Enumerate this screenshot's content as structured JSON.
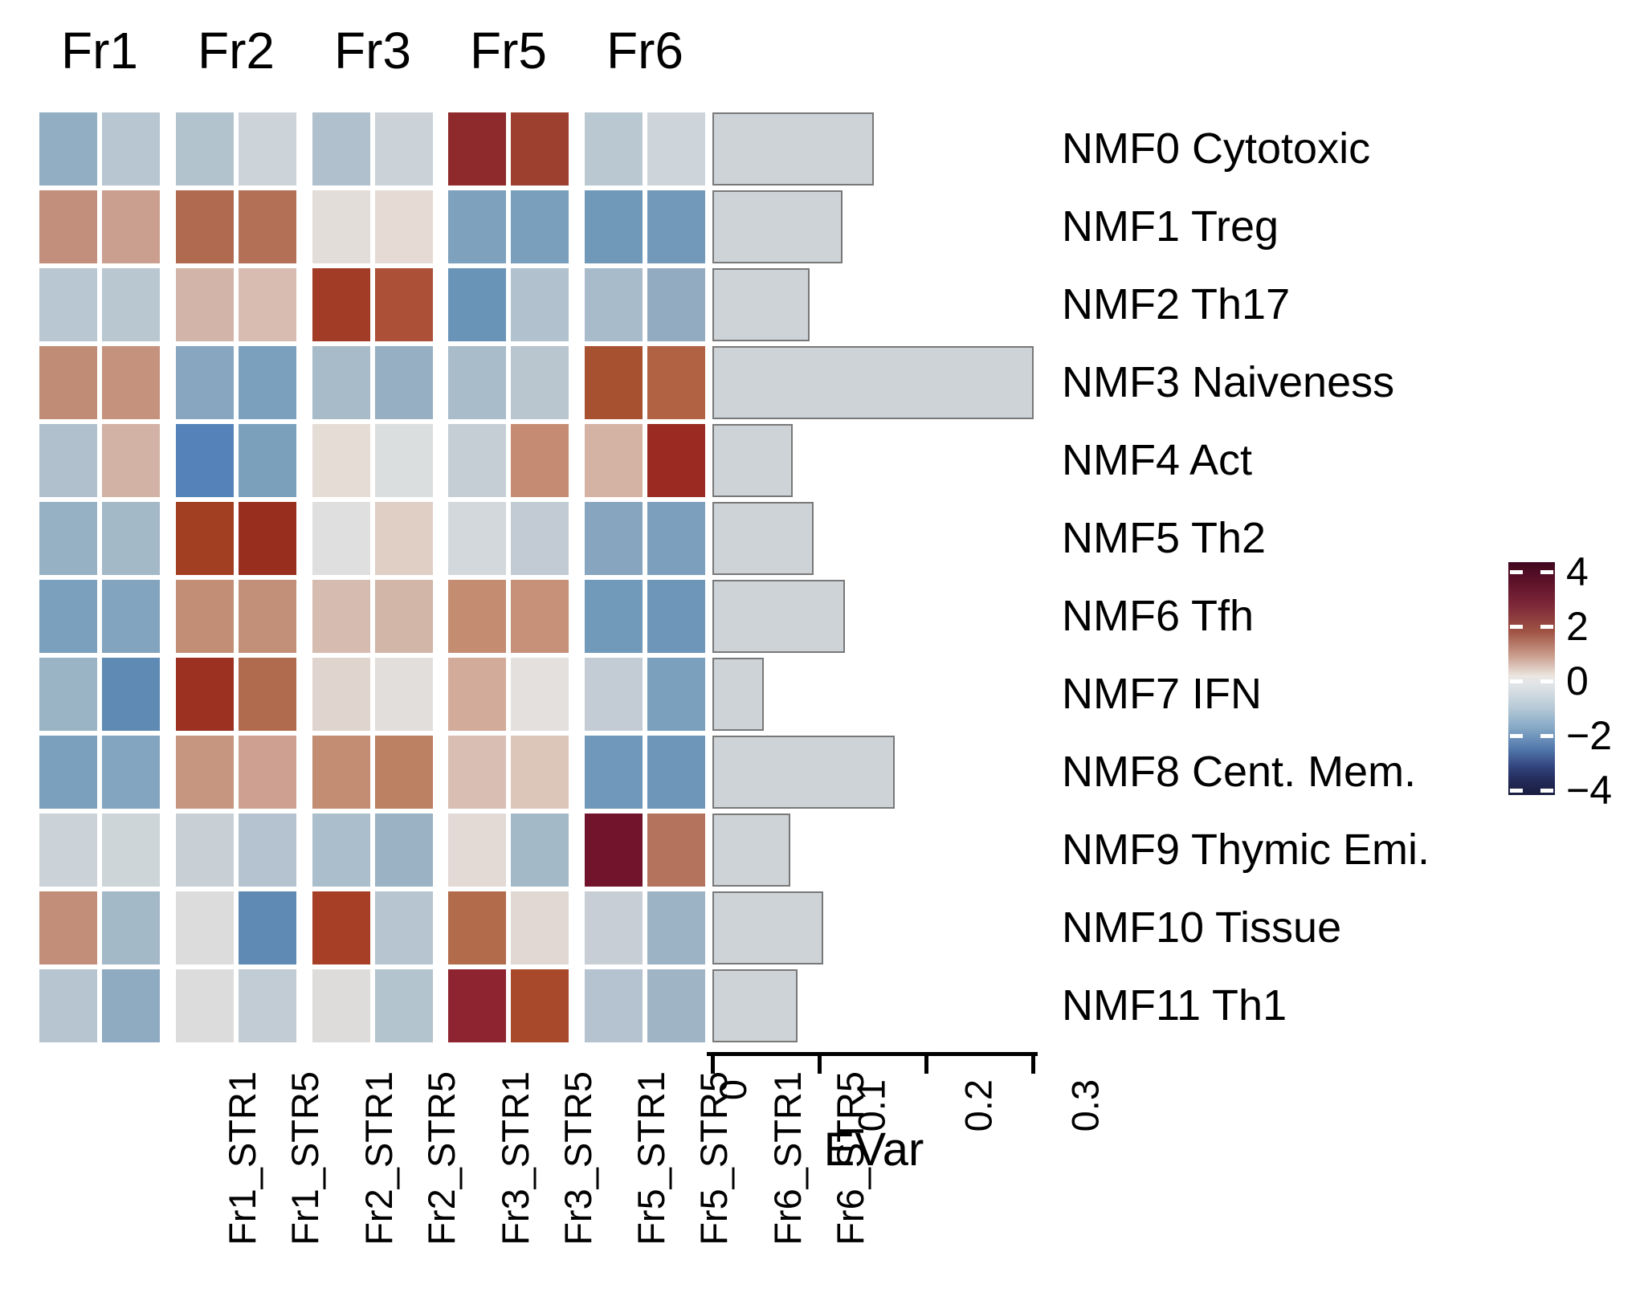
{
  "chart_data": {
    "type": "heatmap",
    "title": "",
    "column_groups": [
      "Fr1",
      "Fr2",
      "Fr3",
      "Fr5",
      "Fr6"
    ],
    "columns": [
      "Fr1_STR1",
      "Fr1_STR5",
      "Fr2_STR1",
      "Fr2_STR5",
      "Fr3_STR1",
      "Fr3_STR5",
      "Fr5_STR1",
      "Fr5_STR5",
      "Fr6_STR1",
      "Fr6_STR5"
    ],
    "rows": [
      "NMF0 Cytotoxic",
      "NMF1 Treg",
      "NMF2 Th17",
      "NMF3 Naiveness",
      "NMF4 Act",
      "NMF5 Th2",
      "NMF6 Tfh",
      "NMF7 IFN",
      "NMF8 Cent. Mem.",
      "NMF9 Thymic Emi.",
      "NMF10 Tissue",
      "NMF11 Th1"
    ],
    "values": [
      [
        -1.1,
        -0.5,
        -0.6,
        -0.25,
        -0.7,
        -0.3,
        3.4,
        2.9,
        -0.5,
        -0.25
      ],
      [
        1.3,
        0.95,
        2.1,
        2.0,
        0.1,
        0.15,
        -1.3,
        -1.35,
        -1.5,
        -1.45
      ],
      [
        -0.55,
        -0.55,
        0.8,
        0.65,
        3.1,
        2.5,
        -1.6,
        -0.65,
        -0.8,
        -1.1
      ],
      [
        1.45,
        1.3,
        -1.2,
        -1.3,
        -0.8,
        -1.05,
        -0.8,
        -0.55,
        2.6,
        2.2
      ],
      [
        -0.7,
        0.85,
        -2.3,
        -1.35,
        0.1,
        -0.1,
        -0.3,
        1.45,
        0.8,
        3.1
      ],
      [
        -1.05,
        -0.85,
        3.0,
        3.3,
        -0.05,
        0.5,
        -0.2,
        -0.45,
        -1.25,
        -1.35
      ],
      [
        -1.35,
        -1.25,
        1.4,
        1.35,
        0.7,
        0.8,
        1.4,
        1.3,
        -1.5,
        -1.55
      ],
      [
        -0.95,
        -2.05,
        3.2,
        2.1,
        0.3,
        0.1,
        0.9,
        0.1,
        -0.4,
        -1.35
      ],
      [
        -1.35,
        -1.25,
        1.2,
        1.0,
        1.4,
        1.7,
        0.65,
        0.5,
        -1.55,
        -1.55
      ],
      [
        -0.3,
        -0.3,
        -0.35,
        -0.6,
        -0.75,
        -1.0,
        0.2,
        -0.85,
        4.3,
        1.9
      ],
      [
        1.4,
        -0.85,
        0.0,
        -2.0,
        3.0,
        -0.55,
        2.0,
        0.15,
        -0.35,
        -1.0
      ],
      [
        -0.6,
        -1.1,
        0.0,
        -0.35,
        0.0,
        -0.6,
        3.3,
        2.7,
        -0.6,
        -0.95
      ]
    ],
    "cell_colors": [
      [
        "#91aec3",
        "#b7c6d0",
        "#b3c3ce",
        "#ccd4d9",
        "#b0c1cd",
        "#cbd3d8",
        "#8e2a2b",
        "#9e402f",
        "#bac8d2",
        "#ced5da"
      ],
      [
        "#c38f7d",
        "#cb9f90",
        "#b06a50",
        "#b37057",
        "#e2ddd8",
        "#e5dbd4",
        "#7ea1bd",
        "#7a9fbc",
        "#7098b9",
        "#7299ba"
      ],
      [
        "#b8c7d1",
        "#b9c7d1",
        "#d3b4a9",
        "#d8bcb1",
        "#a23c27",
        "#ac5037",
        "#6a93b8",
        "#b1c1cd",
        "#a8bbca",
        "#92abc1"
      ],
      [
        "#c18c76",
        "#c5927e",
        "#88a6c0",
        "#7ba0bd",
        "#a8bbc9",
        "#96afc2",
        "#a8bcca",
        "#b9c6d0",
        "#a85130",
        "#b06242"
      ],
      [
        "#b0c1cd",
        "#d2b2a5",
        "#5583b9",
        "#7aa0bc",
        "#e5dcd6",
        "#dbdedf",
        "#c5ced5",
        "#c58c73",
        "#d4b3a5",
        "#9b2a22"
      ],
      [
        "#96b1c4",
        "#a3b9c8",
        "#a23e21",
        "#982f1e",
        "#dedfde",
        "#dfcfc5",
        "#d2d8db",
        "#c2cbd3",
        "#87a5bf",
        "#7b9fbc"
      ],
      [
        "#7ba0bd",
        "#82a4bf",
        "#c28e76",
        "#c28f79",
        "#d6bcb0",
        "#d2b6a8",
        "#c48d72",
        "#c69079",
        "#7099ba",
        "#6e96b8"
      ],
      [
        "#9ab3c5",
        "#5f8ab3",
        "#9c3122",
        "#b06a4d",
        "#e0d5ce",
        "#e2dedc",
        "#d3ab9a",
        "#e3e0de",
        "#c3ccd4",
        "#7aa0bd"
      ],
      [
        "#7ba0bd",
        "#84a5c0",
        "#c79681",
        "#cda092",
        "#c28d72",
        "#bc8062",
        "#d9bfb3",
        "#dcc6ba",
        "#6f98ba",
        "#6e96b9"
      ],
      [
        "#ccd3d8",
        "#cdd5d9",
        "#c8d0d6",
        "#b4c3cf",
        "#abbecb",
        "#9ab2c4",
        "#e3dad5",
        "#a4b9c8",
        "#71142c",
        "#b4735d"
      ],
      [
        "#c28e79",
        "#a3b9c8",
        "#dcdcdc",
        "#5e8ab3",
        "#a63f26",
        "#b7c5d0",
        "#b26b4b",
        "#e1d8d3",
        "#c7ced5",
        "#9cb3c5"
      ],
      [
        "#b6c5d0",
        "#8fabc2",
        "#dddcdd",
        "#c2ccd4",
        "#dddcda",
        "#b4c4cf",
        "#8e2430",
        "#a8492b",
        "#b4c3cf",
        "#9fb5c6"
      ]
    ],
    "colorbar": {
      "tick_labels": [
        "4",
        "2",
        "0",
        "−2",
        "−4"
      ],
      "tick_values": [
        4,
        2,
        0,
        -2,
        -4
      ],
      "vmin": -4.4,
      "vmax": 4.4
    },
    "evar_bars": {
      "type": "bar",
      "axis_label": "EVar",
      "tick_labels": [
        "0",
        "0.1",
        "0.2",
        "0.3"
      ],
      "tick_values": [
        0,
        0.1,
        0.2,
        0.3
      ],
      "xlim": [
        0,
        0.31
      ],
      "values": [
        0.151,
        0.122,
        0.091,
        0.301,
        0.075,
        0.095,
        0.124,
        0.048,
        0.171,
        0.073,
        0.104,
        0.08
      ],
      "bar_fill": "#cdd3d7",
      "bar_border": "#787878"
    }
  }
}
